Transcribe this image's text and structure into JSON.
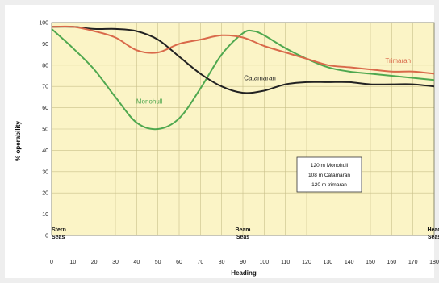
{
  "chart_data": {
    "type": "line",
    "xlabel": "Heading",
    "ylabel": "% operability",
    "xlim": [
      0,
      180
    ],
    "ylim": [
      0,
      100
    ],
    "x_ticks": [
      0,
      10,
      20,
      30,
      40,
      50,
      60,
      70,
      80,
      90,
      100,
      110,
      120,
      130,
      140,
      150,
      160,
      170,
      180
    ],
    "y_ticks": [
      0,
      10,
      20,
      30,
      40,
      50,
      60,
      70,
      80,
      90,
      100
    ],
    "grid": true,
    "background": "#fbf4c6",
    "grid_color": "#c9c08a",
    "sea_labels": [
      {
        "x": 0,
        "line1": "Stern",
        "line2": "Seas"
      },
      {
        "x": 90,
        "line1": "Beam",
        "line2": "Seas"
      },
      {
        "x": 180,
        "line1": "Head",
        "line2": "Seas"
      }
    ],
    "legend_lines": [
      "120 m Monohull",
      "108 m Catamaran",
      "120 m trimaran"
    ],
    "series": [
      {
        "name": "Monohull",
        "color": "#4fa84f",
        "x": [
          0,
          10,
          20,
          30,
          40,
          50,
          60,
          70,
          80,
          90,
          95,
          100,
          110,
          120,
          130,
          140,
          150,
          160,
          170,
          180
        ],
        "y": [
          97,
          88,
          78,
          65,
          53,
          50,
          55,
          69,
          85,
          95,
          96,
          94,
          88,
          83,
          79,
          77,
          76,
          75,
          74,
          73
        ]
      },
      {
        "name": "Catamaran",
        "color": "#222222",
        "x": [
          0,
          10,
          20,
          30,
          40,
          50,
          60,
          70,
          80,
          90,
          100,
          110,
          120,
          130,
          140,
          150,
          160,
          170,
          180
        ],
        "y": [
          98,
          98,
          97,
          97,
          96,
          92,
          84,
          76,
          70,
          67,
          68,
          71,
          72,
          72,
          72,
          71,
          71,
          71,
          70
        ]
      },
      {
        "name": "Trimaran",
        "color": "#d9694a",
        "x": [
          0,
          10,
          20,
          30,
          40,
          50,
          60,
          70,
          80,
          90,
          100,
          110,
          120,
          130,
          140,
          150,
          160,
          170,
          180
        ],
        "y": [
          98,
          98,
          96,
          93,
          87,
          86,
          90,
          92,
          94,
          93,
          89,
          86,
          83,
          80,
          79,
          78,
          77,
          77,
          76
        ]
      }
    ],
    "series_labels": [
      {
        "text": "Monohull",
        "x": 46,
        "y": 62,
        "color": "#4fa84f"
      },
      {
        "text": "Catamaran",
        "x": 98,
        "y": 73,
        "color": "#222222"
      },
      {
        "text": "Trimaran",
        "x": 163,
        "y": 81,
        "color": "#d9694a"
      }
    ]
  }
}
